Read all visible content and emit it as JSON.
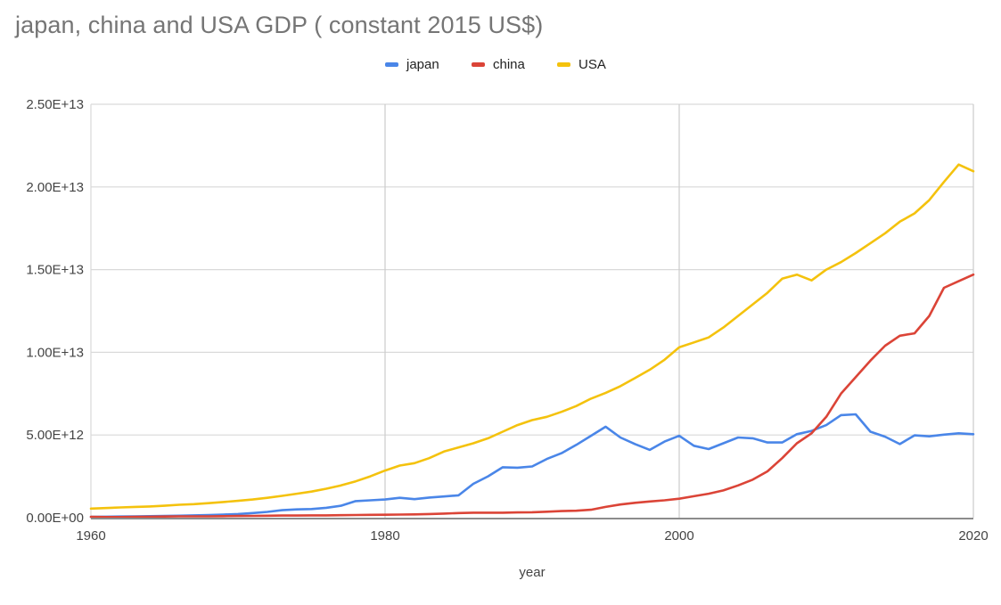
{
  "chart_data": {
    "type": "line",
    "title": "japan, china and USA GDP ( constant 2015 US$)",
    "xlabel": "year",
    "ylabel": "",
    "xlim": [
      1960,
      2020
    ],
    "ylim": [
      0,
      25000000000000.0
    ],
    "x_ticks": [
      1960,
      1980,
      2000,
      2020
    ],
    "x_tick_labels": [
      "1960",
      "1980",
      "2000",
      "2020"
    ],
    "y_ticks": [
      0,
      5000000000000.0,
      10000000000000.0,
      15000000000000.0,
      20000000000000.0,
      25000000000000.0
    ],
    "y_tick_labels": [
      "0.00E+00",
      "5.00E+12",
      "1.00E+13",
      "1.50E+13",
      "2.00E+13",
      "2.50E+13"
    ],
    "grid": true,
    "legend_position": "top-center",
    "x": [
      1960,
      1961,
      1962,
      1963,
      1964,
      1965,
      1966,
      1967,
      1968,
      1969,
      1970,
      1971,
      1972,
      1973,
      1974,
      1975,
      1976,
      1977,
      1978,
      1979,
      1980,
      1981,
      1982,
      1983,
      1984,
      1985,
      1986,
      1987,
      1988,
      1989,
      1990,
      1991,
      1992,
      1993,
      1994,
      1995,
      1996,
      1997,
      1998,
      1999,
      2000,
      2001,
      2002,
      2003,
      2004,
      2005,
      2006,
      2007,
      2008,
      2009,
      2010,
      2011,
      2012,
      2013,
      2014,
      2015,
      2016,
      2017,
      2018,
      2019,
      2020
    ],
    "series": [
      {
        "name": "japan",
        "color": "#4a86e8",
        "values": [
          50000000000.0,
          60000000000.0,
          70000000000.0,
          80000000000.0,
          90000000000.0,
          100000000000.0,
          120000000000.0,
          140000000000.0,
          160000000000.0,
          190000000000.0,
          220000000000.0,
          280000000000.0,
          350000000000.0,
          450000000000.0,
          500000000000.0,
          520000000000.0,
          600000000000.0,
          720000000000.0,
          1000000000000.0,
          1050000000000.0,
          1100000000000.0,
          1200000000000.0,
          1120000000000.0,
          1220000000000.0,
          1280000000000.0,
          1350000000000.0,
          2050000000000.0,
          2500000000000.0,
          3050000000000.0,
          3020000000000.0,
          3100000000000.0,
          3550000000000.0,
          3900000000000.0,
          4400000000000.0,
          4950000000000.0,
          5500000000000.0,
          4850000000000.0,
          4450000000000.0,
          4100000000000.0,
          4600000000000.0,
          4950000000000.0,
          4350000000000.0,
          4150000000000.0,
          4500000000000.0,
          4850000000000.0,
          4800000000000.0,
          4550000000000.0,
          4550000000000.0,
          5050000000000.0,
          5250000000000.0,
          5600000000000.0,
          6200000000000.0,
          6250000000000.0,
          5200000000000.0,
          4900000000000.0,
          4450000000000.0,
          4980000000000.0,
          4920000000000.0,
          5020000000000.0,
          5100000000000.0,
          5050000000000.0
        ]
      },
      {
        "name": "china",
        "color": "#db4437",
        "values": [
          50000000000.0,
          40000000000.0,
          40000000000.0,
          50000000000.0,
          60000000000.0,
          70000000000.0,
          80000000000.0,
          80000000000.0,
          80000000000.0,
          90000000000.0,
          100000000000.0,
          110000000000.0,
          120000000000.0,
          130000000000.0,
          130000000000.0,
          140000000000.0,
          140000000000.0,
          150000000000.0,
          160000000000.0,
          170000000000.0,
          180000000000.0,
          190000000000.0,
          200000000000.0,
          220000000000.0,
          250000000000.0,
          280000000000.0,
          300000000000.0,
          300000000000.0,
          300000000000.0,
          320000000000.0,
          330000000000.0,
          360000000000.0,
          400000000000.0,
          420000000000.0,
          480000000000.0,
          650000000000.0,
          800000000000.0,
          900000000000.0,
          980000000000.0,
          1050000000000.0,
          1150000000000.0,
          1300000000000.0,
          1450000000000.0,
          1650000000000.0,
          1950000000000.0,
          2300000000000.0,
          2800000000000.0,
          3600000000000.0,
          4500000000000.0,
          5100000000000.0,
          6100000000000.0,
          7500000000000.0,
          8500000000000.0,
          9500000000000.0,
          10400000000000.0,
          11000000000000.0,
          11150000000000.0,
          12200000000000.0,
          13900000000000.0,
          14300000000000.0,
          14700000000000.0
        ]
      },
      {
        "name": "USA",
        "color": "#f4c20d",
        "values": [
          550000000000.0,
          580000000000.0,
          620000000000.0,
          650000000000.0,
          680000000000.0,
          720000000000.0,
          780000000000.0,
          820000000000.0,
          880000000000.0,
          950000000000.0,
          1020000000000.0,
          1100000000000.0,
          1200000000000.0,
          1320000000000.0,
          1450000000000.0,
          1580000000000.0,
          1750000000000.0,
          1950000000000.0,
          2200000000000.0,
          2500000000000.0,
          2850000000000.0,
          3150000000000.0,
          3300000000000.0,
          3600000000000.0,
          4000000000000.0,
          4250000000000.0,
          4500000000000.0,
          4800000000000.0,
          5200000000000.0,
          5600000000000.0,
          5900000000000.0,
          6100000000000.0,
          6400000000000.0,
          6750000000000.0,
          7200000000000.0,
          7550000000000.0,
          7950000000000.0,
          8450000000000.0,
          8950000000000.0,
          9550000000000.0,
          10300000000000.0,
          10600000000000.0,
          10900000000000.0,
          11500000000000.0,
          12200000000000.0,
          12900000000000.0,
          13600000000000.0,
          14450000000000.0,
          14700000000000.0,
          14350000000000.0,
          15000000000000.0,
          15450000000000.0,
          16000000000000.0,
          16600000000000.0,
          17200000000000.0,
          17900000000000.0,
          18400000000000.0,
          19200000000000.0,
          20300000000000.0,
          21350000000000.0,
          20950000000000.0
        ]
      }
    ]
  }
}
